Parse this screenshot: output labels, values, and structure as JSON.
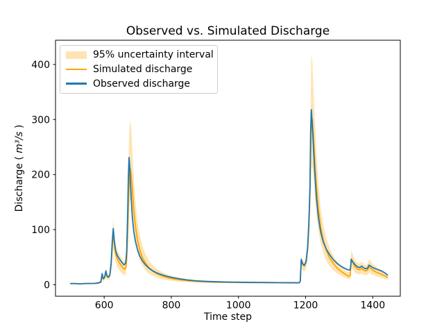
{
  "chart_data": {
    "type": "line",
    "title": "Observed vs. Simulated Discharge",
    "xlabel": "Time step",
    "ylabel": "Discharge (m³/s)",
    "ylabel_parts": {
      "prefix": "Discharge (",
      "math": "m³/s",
      "suffix": ")"
    },
    "xlim": [
      455,
      1482
    ],
    "ylim": [
      -21,
      444
    ],
    "xticks": [
      600,
      800,
      1000,
      1200,
      1400
    ],
    "yticks": [
      0,
      100,
      200,
      300,
      400
    ],
    "grid": false,
    "legend": {
      "position": "upper-left",
      "entries": [
        {
          "label": "95% uncertainty interval",
          "type": "patch",
          "color": "#ffa500",
          "opacity": 0.3
        },
        {
          "label": "Simulated discharge",
          "type": "line",
          "color": "#ffa500"
        },
        {
          "label": "Observed discharge",
          "type": "line",
          "color": "#1f77b4"
        }
      ]
    },
    "colors": {
      "observed": "#1f77b4",
      "simulated": "#ffa500",
      "band": "#ffa500",
      "band_opacity": 0.3,
      "spine": "#000000"
    },
    "series_names": [
      "time",
      "observed",
      "simulated",
      "band_low",
      "band_high"
    ],
    "points": [
      [
        500,
        2,
        2,
        1,
        3.5
      ],
      [
        515,
        2,
        2,
        1,
        3.5
      ],
      [
        528,
        1.2,
        1.5,
        0.8,
        2.5
      ],
      [
        540,
        2,
        2,
        1,
        3.5
      ],
      [
        556,
        2.2,
        2,
        1,
        3.5
      ],
      [
        570,
        2.3,
        2.2,
        1.2,
        3.8
      ],
      [
        582,
        3,
        2.8,
        1.5,
        4.5
      ],
      [
        590,
        5,
        4.5,
        2.5,
        7
      ],
      [
        594,
        20,
        17,
        11,
        24
      ],
      [
        597,
        11,
        10,
        6,
        14
      ],
      [
        601,
        13,
        12,
        8,
        17
      ],
      [
        605,
        25,
        21,
        14,
        29
      ],
      [
        609,
        15,
        14,
        9,
        19
      ],
      [
        613,
        14,
        13,
        8.5,
        18
      ],
      [
        617,
        18,
        17,
        11,
        23
      ],
      [
        621,
        42,
        36,
        25,
        48
      ],
      [
        624,
        78,
        68,
        48,
        88
      ],
      [
        627,
        102,
        92,
        66,
        118
      ],
      [
        630,
        80,
        76,
        54,
        98
      ],
      [
        634,
        62,
        57,
        40,
        76
      ],
      [
        639,
        53,
        47,
        32,
        64
      ],
      [
        645,
        47,
        40,
        26,
        56
      ],
      [
        652,
        41,
        34,
        21,
        49
      ],
      [
        659,
        36,
        28,
        17,
        42
      ],
      [
        664,
        39,
        30,
        18,
        45
      ],
      [
        667,
        60,
        45,
        28,
        65
      ],
      [
        670,
        130,
        90,
        60,
        130
      ],
      [
        672,
        195,
        140,
        95,
        200
      ],
      [
        674,
        231,
        185,
        130,
        265
      ],
      [
        676,
        216,
        205,
        150,
        292
      ],
      [
        678,
        186,
        210,
        155,
        297
      ],
      [
        681,
        152,
        198,
        145,
        280
      ],
      [
        684,
        122,
        172,
        125,
        243
      ],
      [
        688,
        97,
        138,
        100,
        196
      ],
      [
        693,
        79,
        107,
        77,
        152
      ],
      [
        699,
        64,
        82,
        58,
        117
      ],
      [
        706,
        52,
        63,
        44,
        90
      ],
      [
        714,
        43,
        49,
        34,
        70
      ],
      [
        723,
        36,
        39,
        26,
        56
      ],
      [
        733,
        30,
        31,
        20,
        44
      ],
      [
        745,
        25,
        24.5,
        16,
        35
      ],
      [
        758,
        21,
        19.5,
        12.5,
        28
      ],
      [
        772,
        18,
        16,
        10,
        23
      ],
      [
        788,
        15,
        13,
        8.2,
        18.5
      ],
      [
        806,
        12.5,
        10.5,
        6.6,
        15
      ],
      [
        826,
        10.5,
        8.8,
        5.5,
        12.5
      ],
      [
        848,
        8.5,
        7.3,
        4.6,
        10.4
      ],
      [
        872,
        7,
        6.1,
        3.8,
        8.7
      ],
      [
        900,
        6,
        5.3,
        3.3,
        7.5
      ],
      [
        935,
        5.2,
        4.6,
        2.9,
        6.6
      ],
      [
        975,
        4.7,
        4.2,
        2.6,
        6
      ],
      [
        1020,
        4.3,
        3.9,
        2.4,
        5.5
      ],
      [
        1070,
        4,
        3.6,
        2.3,
        5.1
      ],
      [
        1120,
        3.7,
        3.4,
        2.1,
        4.8
      ],
      [
        1165,
        3.5,
        3.3,
        2.1,
        4.7
      ],
      [
        1181,
        3.5,
        3.3,
        2.1,
        4.7
      ],
      [
        1184,
        6,
        6,
        3.8,
        8.5
      ],
      [
        1187,
        46,
        43,
        30,
        52
      ],
      [
        1191,
        38,
        37,
        26,
        45
      ],
      [
        1196,
        35,
        34,
        24,
        41
      ],
      [
        1201,
        41,
        40,
        28,
        48
      ],
      [
        1206,
        68,
        64,
        45,
        77
      ],
      [
        1209,
        105,
        98,
        69,
        118
      ],
      [
        1211,
        137,
        128,
        90,
        154
      ],
      [
        1213,
        180,
        165,
        117,
        210
      ],
      [
        1215,
        280,
        240,
        170,
        330
      ],
      [
        1217,
        318,
        295,
        210,
        420
      ],
      [
        1220,
        290,
        300,
        215,
        405
      ],
      [
        1223,
        255,
        272,
        195,
        362
      ],
      [
        1227,
        207,
        228,
        163,
        303
      ],
      [
        1232,
        159,
        180,
        128,
        240
      ],
      [
        1238,
        122,
        138,
        98,
        184
      ],
      [
        1245,
        95,
        104,
        74,
        139
      ],
      [
        1253,
        77,
        80,
        56,
        107
      ],
      [
        1262,
        64,
        62,
        43,
        84
      ],
      [
        1272,
        54,
        48,
        33,
        66
      ],
      [
        1283,
        45,
        38,
        26,
        52
      ],
      [
        1295,
        38,
        29.5,
        20,
        41
      ],
      [
        1308,
        32.5,
        23,
        15.5,
        32.5
      ],
      [
        1320,
        28.5,
        18,
        12,
        26
      ],
      [
        1329,
        26.5,
        15,
        9.8,
        22
      ],
      [
        1333,
        27,
        17,
        11,
        25
      ],
      [
        1336,
        46,
        47,
        32,
        64
      ],
      [
        1341,
        41,
        39,
        27,
        54
      ],
      [
        1347,
        36.5,
        32.5,
        22,
        45
      ],
      [
        1354,
        32.5,
        28.5,
        19.5,
        40
      ],
      [
        1361,
        31,
        27,
        18.5,
        38
      ],
      [
        1367,
        33.5,
        29.5,
        20,
        41.5
      ],
      [
        1372,
        31,
        26.5,
        18,
        37.5
      ],
      [
        1378,
        29,
        25,
        17,
        35.5
      ],
      [
        1384,
        29.5,
        26,
        17.5,
        37
      ],
      [
        1389,
        35.5,
        32.5,
        22,
        46.5
      ],
      [
        1394,
        33.5,
        29.5,
        20,
        42
      ],
      [
        1400,
        31,
        26.5,
        18,
        37.5
      ],
      [
        1408,
        29,
        23.5,
        15.8,
        33
      ],
      [
        1417,
        27,
        21,
        14,
        29.5
      ],
      [
        1427,
        24.5,
        18.5,
        12.3,
        26
      ],
      [
        1436,
        21.5,
        16,
        10.6,
        22.5
      ],
      [
        1444,
        17.5,
        13,
        8.5,
        18.5
      ]
    ]
  }
}
